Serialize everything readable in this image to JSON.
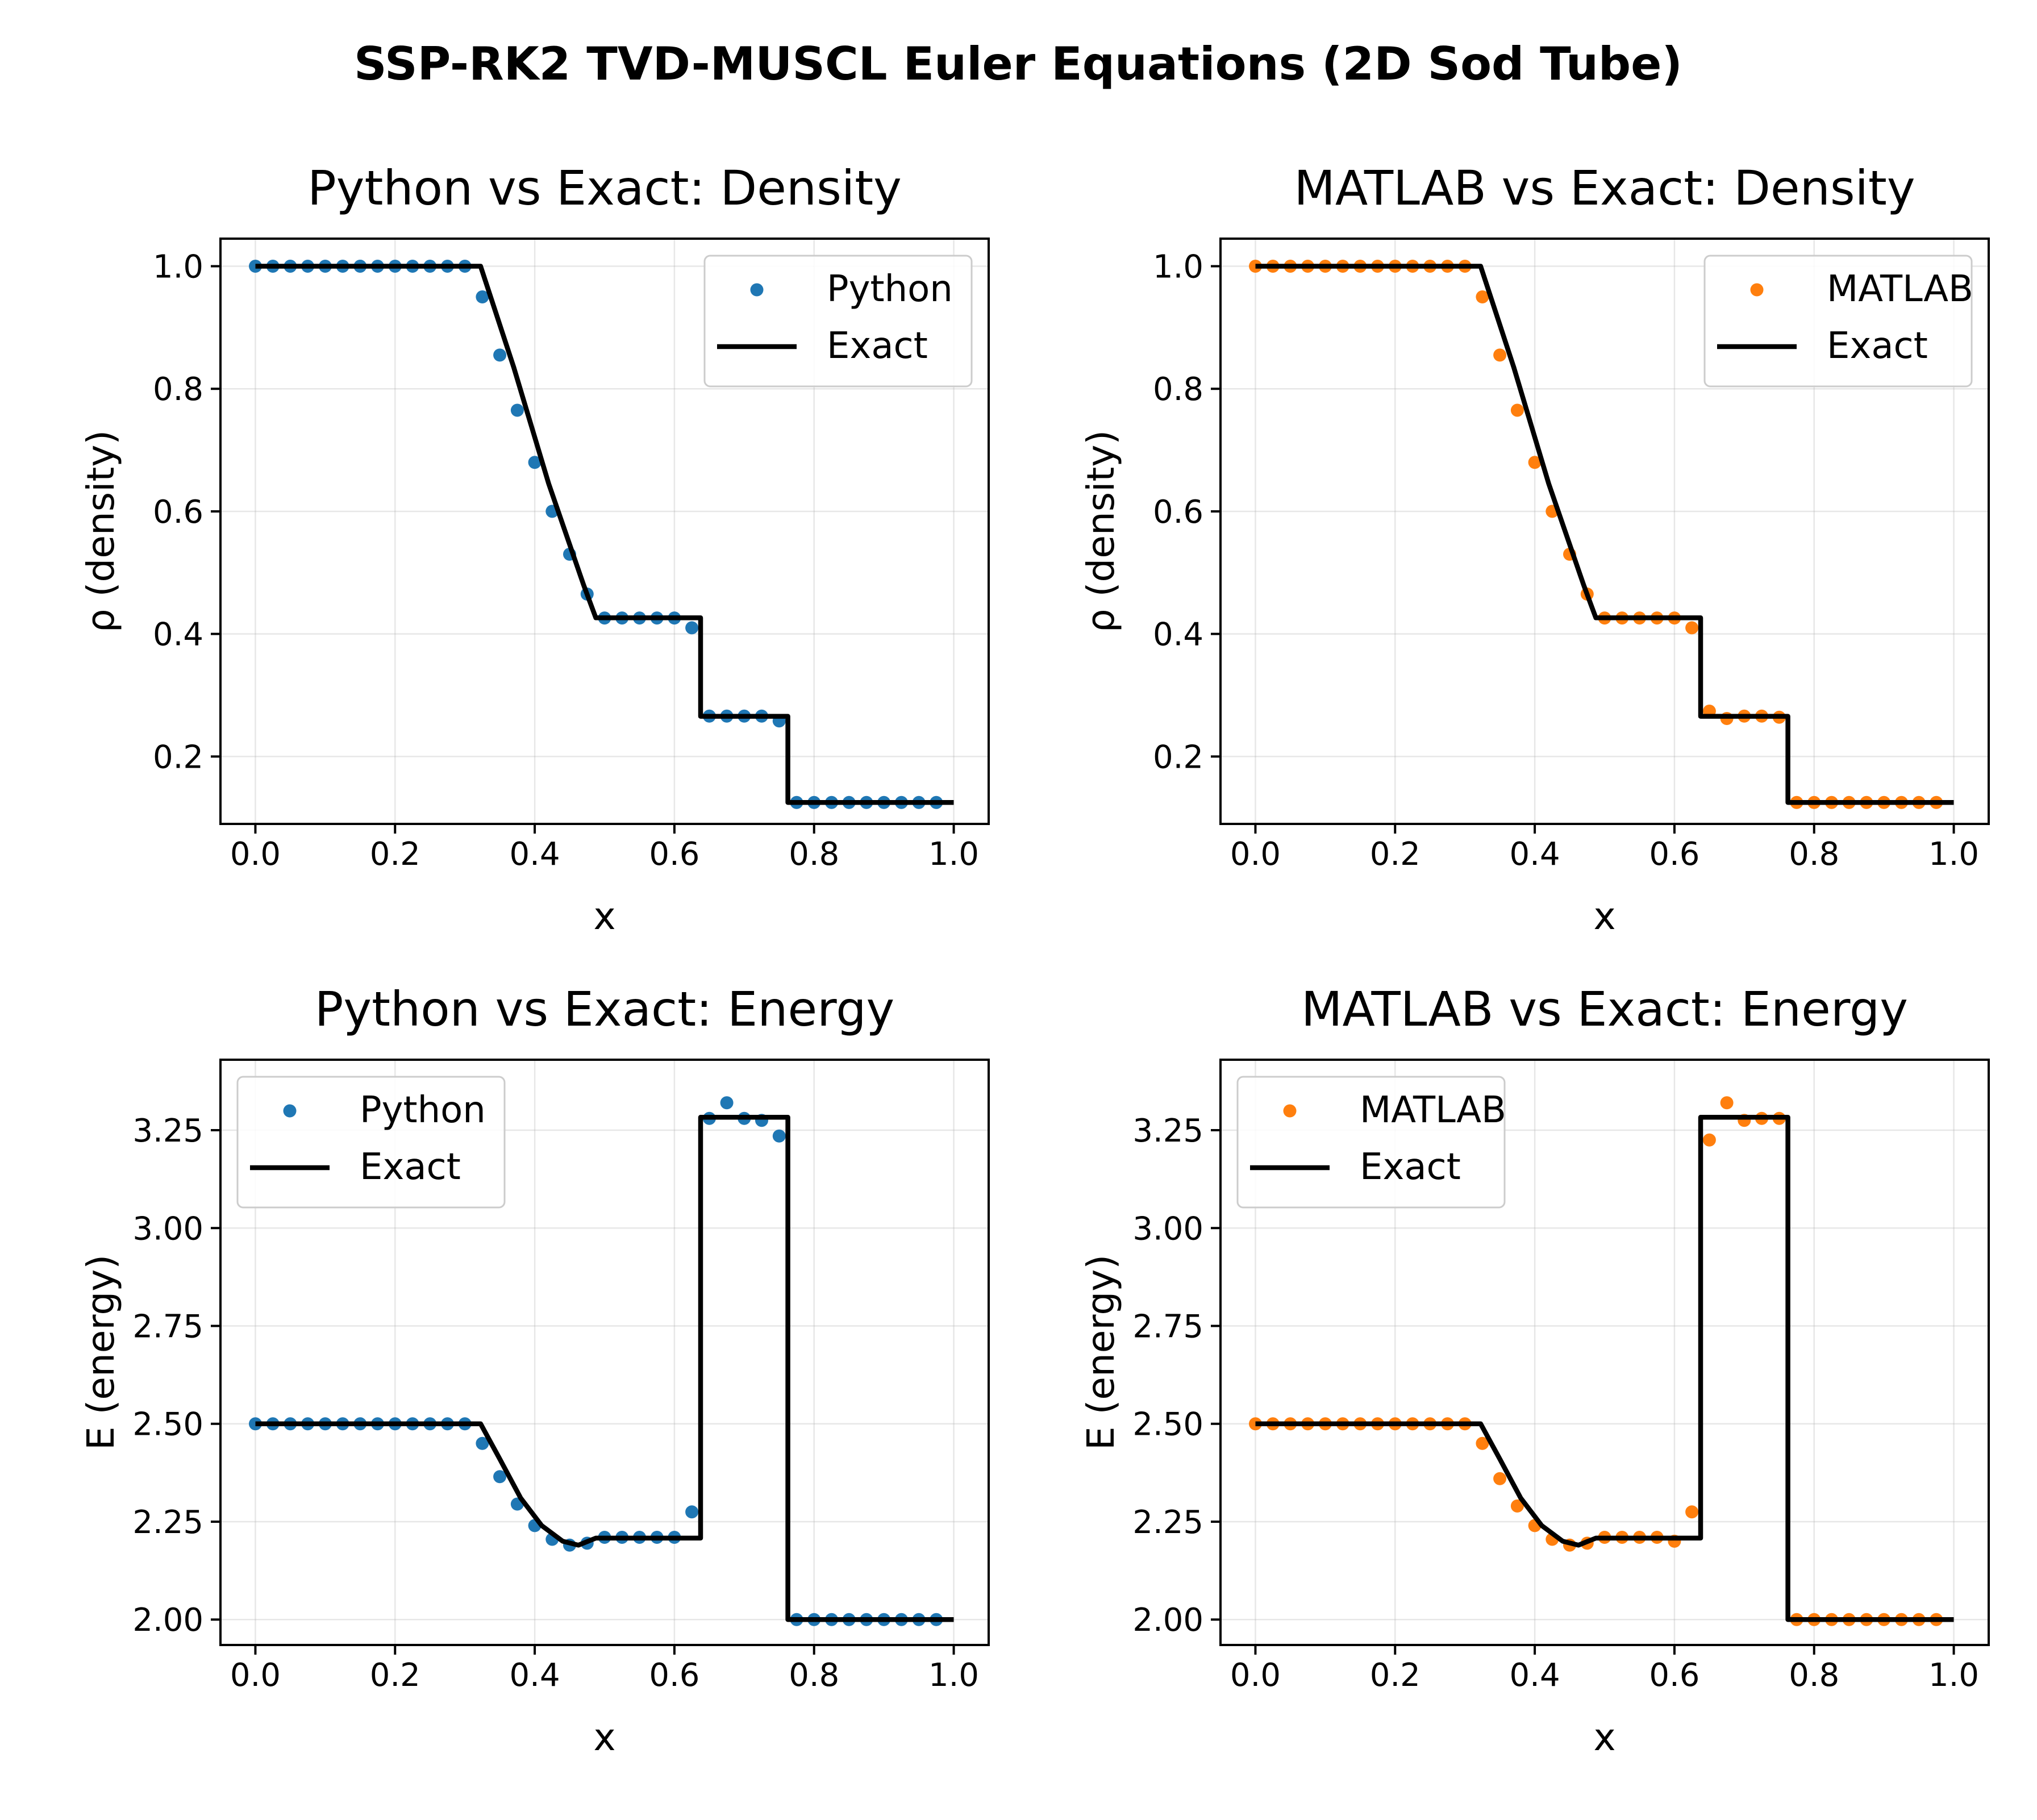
{
  "suptitle": "SSP-RK2 TVD-MUSCL Euler Equations (2D Sod Tube)",
  "colors": {
    "python": "#1f77b4",
    "matlab": "#ff7f0e",
    "exact": "#000000"
  },
  "chart_data": [
    {
      "type": "scatter",
      "title": "Python vs Exact: Density",
      "xlabel": "x",
      "ylabel": "ρ (density)",
      "xlim": [
        -0.05,
        1.05
      ],
      "ylim": [
        0.09,
        1.045
      ],
      "xticks": [
        0.0,
        0.2,
        0.4,
        0.6,
        0.8,
        1.0
      ],
      "xtick_labels": [
        "0.0",
        "0.2",
        "0.4",
        "0.6",
        "0.8",
        "1.0"
      ],
      "yticks": [
        0.2,
        0.4,
        0.6,
        0.8,
        1.0
      ],
      "ytick_labels": [
        "0.2",
        "0.4",
        "0.6",
        "0.8",
        "1.0"
      ],
      "grid": true,
      "legend_position": "upper right",
      "series": [
        {
          "name": "Python",
          "kind": "points",
          "color": "#1f77b4",
          "x": [
            0.0,
            0.025,
            0.05,
            0.075,
            0.1,
            0.125,
            0.15,
            0.175,
            0.2,
            0.225,
            0.25,
            0.275,
            0.3,
            0.325,
            0.35,
            0.375,
            0.4,
            0.425,
            0.45,
            0.475,
            0.5,
            0.525,
            0.55,
            0.575,
            0.6,
            0.625,
            0.65,
            0.675,
            0.7,
            0.725,
            0.75,
            0.775,
            0.8,
            0.825,
            0.85,
            0.875,
            0.9,
            0.925,
            0.95,
            0.975
          ],
          "y": [
            1.0,
            1.0,
            1.0,
            1.0,
            1.0,
            1.0,
            1.0,
            1.0,
            1.0,
            1.0,
            1.0,
            1.0,
            1.0,
            0.95,
            0.855,
            0.765,
            0.68,
            0.6,
            0.53,
            0.465,
            0.426,
            0.426,
            0.426,
            0.426,
            0.426,
            0.41,
            0.266,
            0.266,
            0.266,
            0.266,
            0.258,
            0.125,
            0.125,
            0.125,
            0.125,
            0.125,
            0.125,
            0.125,
            0.125,
            0.125
          ]
        },
        {
          "name": "Exact",
          "kind": "line",
          "color": "#000000",
          "x": [
            0.0,
            0.3225,
            0.37,
            0.42,
            0.47,
            0.4875,
            0.6375,
            0.6375,
            0.7625,
            0.7625,
            1.0
          ],
          "y": [
            1.0,
            1.0,
            0.835,
            0.645,
            0.48,
            0.4263,
            0.4263,
            0.2656,
            0.2656,
            0.125,
            0.125
          ]
        }
      ]
    },
    {
      "type": "scatter",
      "title": "MATLAB vs Exact: Density",
      "xlabel": "x",
      "ylabel": "ρ (density)",
      "xlim": [
        -0.05,
        1.05
      ],
      "ylim": [
        0.09,
        1.045
      ],
      "xticks": [
        0.0,
        0.2,
        0.4,
        0.6,
        0.8,
        1.0
      ],
      "xtick_labels": [
        "0.0",
        "0.2",
        "0.4",
        "0.6",
        "0.8",
        "1.0"
      ],
      "yticks": [
        0.2,
        0.4,
        0.6,
        0.8,
        1.0
      ],
      "ytick_labels": [
        "0.2",
        "0.4",
        "0.6",
        "0.8",
        "1.0"
      ],
      "grid": true,
      "legend_position": "upper right",
      "series": [
        {
          "name": "MATLAB",
          "kind": "points",
          "color": "#ff7f0e",
          "x": [
            0.0,
            0.025,
            0.05,
            0.075,
            0.1,
            0.125,
            0.15,
            0.175,
            0.2,
            0.225,
            0.25,
            0.275,
            0.3,
            0.325,
            0.35,
            0.375,
            0.4,
            0.425,
            0.45,
            0.475,
            0.5,
            0.525,
            0.55,
            0.575,
            0.6,
            0.625,
            0.65,
            0.675,
            0.7,
            0.725,
            0.75,
            0.775,
            0.8,
            0.825,
            0.85,
            0.875,
            0.9,
            0.925,
            0.95,
            0.975
          ],
          "y": [
            1.0,
            1.0,
            1.0,
            1.0,
            1.0,
            1.0,
            1.0,
            1.0,
            1.0,
            1.0,
            1.0,
            1.0,
            1.0,
            0.95,
            0.855,
            0.765,
            0.68,
            0.6,
            0.53,
            0.465,
            0.426,
            0.426,
            0.426,
            0.426,
            0.426,
            0.41,
            0.274,
            0.262,
            0.266,
            0.266,
            0.264,
            0.125,
            0.125,
            0.125,
            0.125,
            0.125,
            0.125,
            0.125,
            0.125,
            0.125
          ]
        },
        {
          "name": "Exact",
          "kind": "line",
          "color": "#000000",
          "x": [
            0.0,
            0.3225,
            0.37,
            0.42,
            0.47,
            0.4875,
            0.6375,
            0.6375,
            0.7625,
            0.7625,
            1.0
          ],
          "y": [
            1.0,
            1.0,
            0.835,
            0.645,
            0.48,
            0.4263,
            0.4263,
            0.2656,
            0.2656,
            0.125,
            0.125
          ]
        }
      ]
    },
    {
      "type": "scatter",
      "title": "Python vs Exact: Energy",
      "xlabel": "x",
      "ylabel": "E (energy)",
      "xlim": [
        -0.05,
        1.05
      ],
      "ylim": [
        1.935,
        3.43
      ],
      "xticks": [
        0.0,
        0.2,
        0.4,
        0.6,
        0.8,
        1.0
      ],
      "xtick_labels": [
        "0.0",
        "0.2",
        "0.4",
        "0.6",
        "0.8",
        "1.0"
      ],
      "yticks": [
        2.0,
        2.25,
        2.5,
        2.75,
        3.0,
        3.25
      ],
      "ytick_labels": [
        "2.00",
        "2.25",
        "2.50",
        "2.75",
        "3.00",
        "3.25"
      ],
      "grid": true,
      "legend_position": "upper left",
      "series": [
        {
          "name": "Python",
          "kind": "points",
          "color": "#1f77b4",
          "x": [
            0.0,
            0.025,
            0.05,
            0.075,
            0.1,
            0.125,
            0.15,
            0.175,
            0.2,
            0.225,
            0.25,
            0.275,
            0.3,
            0.325,
            0.35,
            0.375,
            0.4,
            0.425,
            0.45,
            0.475,
            0.5,
            0.525,
            0.55,
            0.575,
            0.6,
            0.625,
            0.65,
            0.675,
            0.7,
            0.725,
            0.75,
            0.775,
            0.8,
            0.825,
            0.85,
            0.875,
            0.9,
            0.925,
            0.95,
            0.975
          ],
          "y": [
            2.5,
            2.5,
            2.5,
            2.5,
            2.5,
            2.5,
            2.5,
            2.5,
            2.5,
            2.5,
            2.5,
            2.5,
            2.5,
            2.45,
            2.365,
            2.295,
            2.24,
            2.205,
            2.19,
            2.195,
            2.21,
            2.21,
            2.21,
            2.21,
            2.21,
            2.275,
            3.28,
            3.32,
            3.28,
            3.275,
            3.235,
            2.0,
            2.0,
            2.0,
            2.0,
            2.0,
            2.0,
            2.0,
            2.0,
            2.0
          ]
        },
        {
          "name": "Exact",
          "kind": "line",
          "color": "#000000",
          "x": [
            0.0,
            0.3225,
            0.35,
            0.38,
            0.41,
            0.44,
            0.4625,
            0.4875,
            0.6375,
            0.6375,
            0.7625,
            0.7625,
            1.0
          ],
          "y": [
            2.5,
            2.5,
            2.41,
            2.31,
            2.24,
            2.2,
            2.19,
            2.208,
            2.208,
            3.283,
            3.283,
            2.0,
            2.0
          ]
        }
      ]
    },
    {
      "type": "scatter",
      "title": "MATLAB vs Exact: Energy",
      "xlabel": "x",
      "ylabel": "E (energy)",
      "xlim": [
        -0.05,
        1.05
      ],
      "ylim": [
        1.935,
        3.43
      ],
      "xticks": [
        0.0,
        0.2,
        0.4,
        0.6,
        0.8,
        1.0
      ],
      "xtick_labels": [
        "0.0",
        "0.2",
        "0.4",
        "0.6",
        "0.8",
        "1.0"
      ],
      "yticks": [
        2.0,
        2.25,
        2.5,
        2.75,
        3.0,
        3.25
      ],
      "ytick_labels": [
        "2.00",
        "2.25",
        "2.50",
        "2.75",
        "3.00",
        "3.25"
      ],
      "grid": true,
      "legend_position": "upper left",
      "series": [
        {
          "name": "MATLAB",
          "kind": "points",
          "color": "#ff7f0e",
          "x": [
            0.0,
            0.025,
            0.05,
            0.075,
            0.1,
            0.125,
            0.15,
            0.175,
            0.2,
            0.225,
            0.25,
            0.275,
            0.3,
            0.325,
            0.35,
            0.375,
            0.4,
            0.425,
            0.45,
            0.475,
            0.5,
            0.525,
            0.55,
            0.575,
            0.6,
            0.625,
            0.65,
            0.675,
            0.7,
            0.725,
            0.75,
            0.775,
            0.8,
            0.825,
            0.85,
            0.875,
            0.9,
            0.925,
            0.95,
            0.975
          ],
          "y": [
            2.5,
            2.5,
            2.5,
            2.5,
            2.5,
            2.5,
            2.5,
            2.5,
            2.5,
            2.5,
            2.5,
            2.5,
            2.5,
            2.45,
            2.36,
            2.29,
            2.24,
            2.205,
            2.19,
            2.195,
            2.21,
            2.21,
            2.21,
            2.21,
            2.2,
            2.275,
            3.225,
            3.32,
            3.275,
            3.28,
            3.28,
            2.0,
            2.0,
            2.0,
            2.0,
            2.0,
            2.0,
            2.0,
            2.0,
            2.0
          ]
        },
        {
          "name": "Exact",
          "kind": "line",
          "color": "#000000",
          "x": [
            0.0,
            0.3225,
            0.35,
            0.38,
            0.41,
            0.44,
            0.4625,
            0.4875,
            0.6375,
            0.6375,
            0.7625,
            0.7625,
            1.0
          ],
          "y": [
            2.5,
            2.5,
            2.41,
            2.31,
            2.24,
            2.2,
            2.19,
            2.208,
            2.208,
            3.283,
            3.283,
            2.0,
            2.0
          ]
        }
      ]
    }
  ]
}
